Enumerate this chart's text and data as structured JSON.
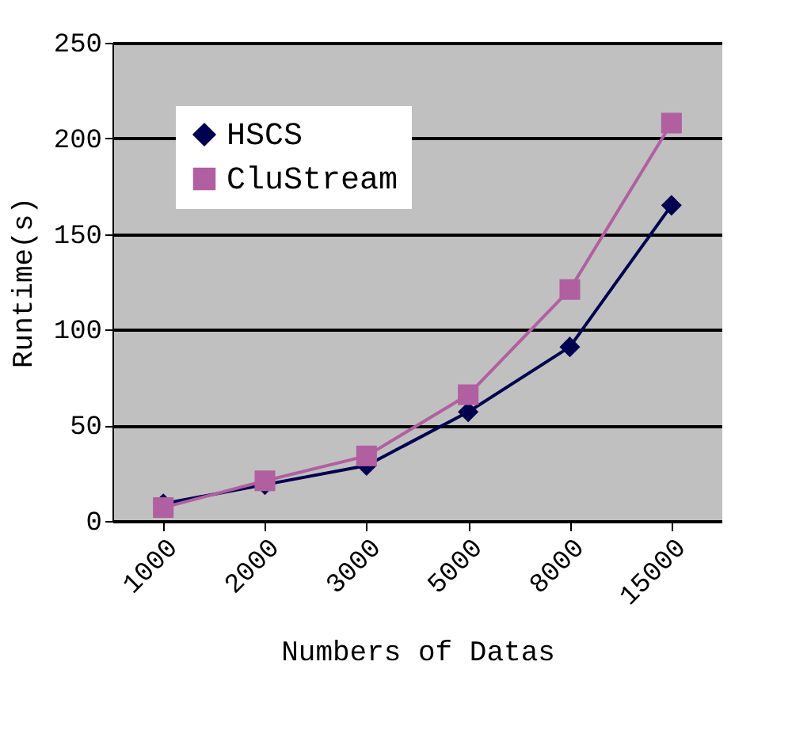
{
  "chart_data": {
    "type": "line",
    "xlabel": "Numbers of Datas",
    "ylabel": "Runtime(s)",
    "categories": [
      "1000",
      "2000",
      "3000",
      "5000",
      "8000",
      "15000"
    ],
    "series": [
      {
        "name": "HSCS",
        "color": "#000050",
        "marker": "diamond",
        "values": [
          9,
          19,
          29,
          57,
          91,
          165
        ]
      },
      {
        "name": "CluStream",
        "color": "#b060a0",
        "marker": "square",
        "values": [
          7,
          21,
          34,
          66,
          121,
          208
        ]
      }
    ],
    "ylim": [
      0,
      250
    ],
    "yticks": [
      0,
      50,
      100,
      150,
      200,
      250
    ],
    "grid": "y",
    "legend": "top left"
  }
}
